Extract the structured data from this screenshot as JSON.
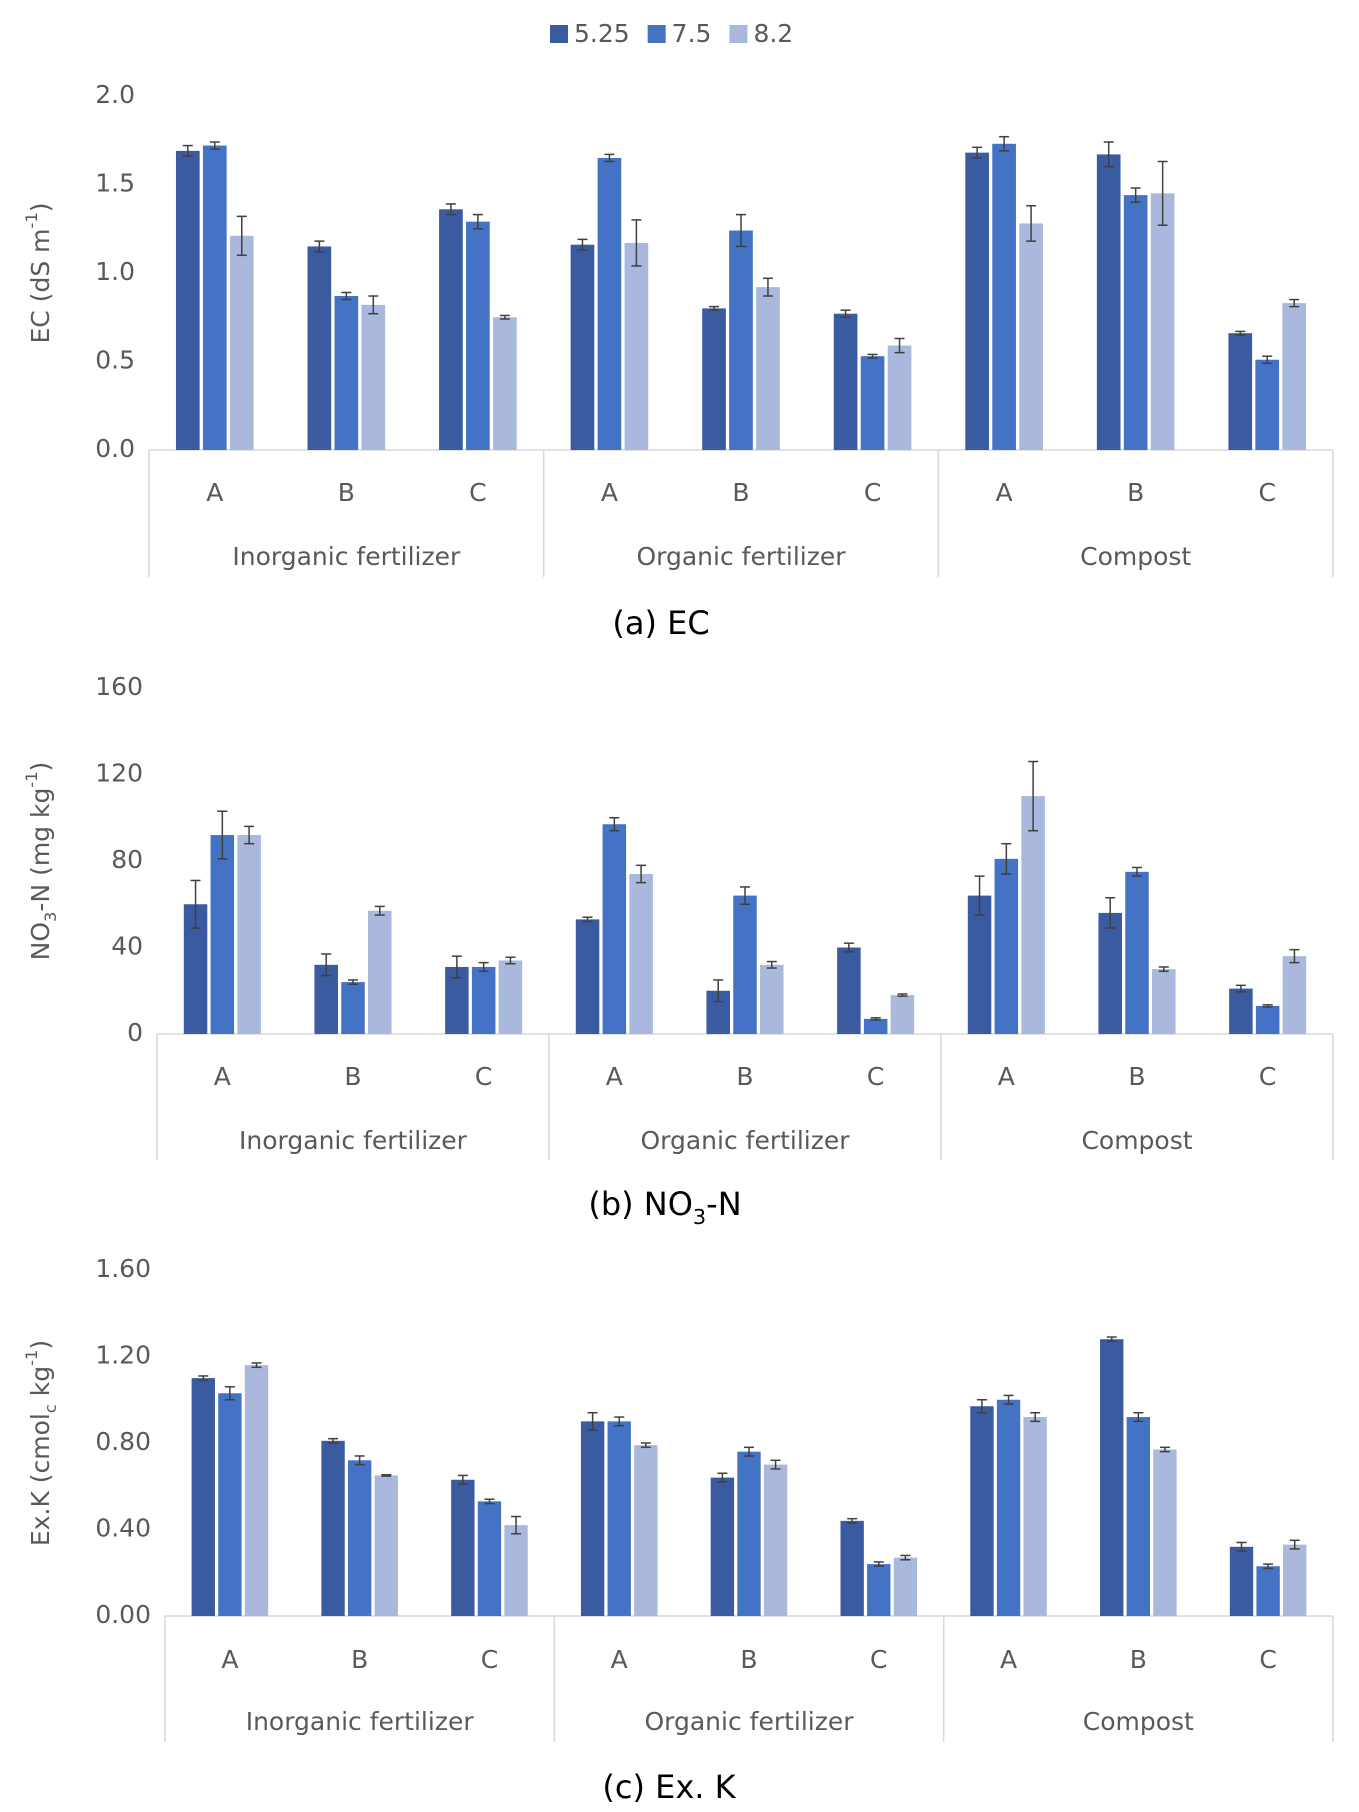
{
  "chart_data": {
    "charts": [
      {
        "type": "bar",
        "caption": [
          {
            "text": "(a) EC"
          }
        ],
        "y_label": [
          {
            "text": "EC (dS m"
          },
          {
            "text": "-1",
            "shift": "sup"
          },
          {
            "text": ")"
          }
        ],
        "categories": [
          "A",
          "B",
          "C",
          "A",
          "B",
          "C",
          "A",
          "B",
          "C"
        ],
        "groups": [
          "Inorganic fertilizer",
          "Organic fertilizer",
          "Compost"
        ],
        "ylim": [
          0,
          2
        ],
        "yticks": [
          {
            "value": 0,
            "label": "0.0"
          },
          0.5,
          {
            "value": 1,
            "label": "1.0"
          },
          1.5,
          {
            "value": 2,
            "label": "2.0"
          }
        ],
        "grid": false,
        "legend": "top",
        "series": [
          {
            "name": "5.25",
            "color": "#3a5ba0",
            "values": [
              1.69,
              1.15,
              1.36,
              1.16,
              0.8,
              0.77,
              1.68,
              1.67,
              0.66
            ],
            "errors": [
              0.03,
              0.03,
              0.03,
              0.03,
              0.01,
              0.02,
              0.03,
              0.07,
              0.01
            ]
          },
          {
            "name": "7.5",
            "color": "#4472c4",
            "values": [
              1.72,
              0.87,
              1.29,
              1.65,
              1.24,
              0.53,
              1.73,
              1.44,
              0.51
            ],
            "errors": [
              0.02,
              0.02,
              0.04,
              0.02,
              0.09,
              0.01,
              0.04,
              0.04,
              0.02
            ]
          },
          {
            "name": "8.2",
            "color": "#a9b8dc",
            "values": [
              1.21,
              0.82,
              0.75,
              1.17,
              0.92,
              0.59,
              1.28,
              1.45,
              0.83
            ],
            "errors": [
              0.11,
              0.05,
              0.01,
              0.13,
              0.05,
              0.04,
              0.1,
              0.18,
              0.02
            ]
          }
        ]
      },
      {
        "type": "bar",
        "caption": [
          {
            "text": "(b) NO"
          },
          {
            "text": "3",
            "shift": "sub"
          },
          {
            "text": "-N"
          }
        ],
        "y_label": [
          {
            "text": "NO"
          },
          {
            "text": "3",
            "shift": "sub"
          },
          {
            "text": "-N (mg kg"
          },
          {
            "text": "-1",
            "shift": "sup"
          },
          {
            "text": ")"
          }
        ],
        "categories": [
          "A",
          "B",
          "C",
          "A",
          "B",
          "C",
          "A",
          "B",
          "C"
        ],
        "groups": [
          "Inorganic fertilizer",
          "Organic fertilizer",
          "Compost"
        ],
        "ylim": [
          0,
          160
        ],
        "yticks": [
          0,
          40,
          80,
          120,
          160
        ],
        "grid": false,
        "series": [
          {
            "name": "5.25",
            "color": "#3a5ba0",
            "values": [
              60,
              32,
              31,
              53,
              20,
              40,
              64,
              56,
              21
            ],
            "errors": [
              11,
              5,
              5,
              1,
              5,
              2,
              9,
              7,
              1.5
            ]
          },
          {
            "name": "7.5",
            "color": "#4472c4",
            "values": [
              92,
              24,
              31,
              97,
              64,
              7,
              81,
              75,
              13
            ],
            "errors": [
              11,
              1,
              2,
              3,
              4,
              0.5,
              7,
              2,
              0.5
            ]
          },
          {
            "name": "8.2",
            "color": "#a9b8dc",
            "values": [
              92,
              57,
              34,
              74,
              32,
              18,
              110,
              30,
              36
            ],
            "errors": [
              4,
              2,
              1.5,
              4,
              1.5,
              0.5,
              16,
              1,
              3
            ]
          }
        ]
      },
      {
        "type": "bar",
        "caption": [
          {
            "text": "(c) Ex. K"
          }
        ],
        "y_label": [
          {
            "text": "Ex.K (cmol"
          },
          {
            "text": "c",
            "shift": "sub"
          },
          {
            "text": " kg"
          },
          {
            "text": "-1",
            "shift": "sup"
          },
          {
            "text": ")"
          }
        ],
        "categories": [
          "A",
          "B",
          "C",
          "A",
          "B",
          "C",
          "A",
          "B",
          "C"
        ],
        "groups": [
          "Inorganic fertilizer",
          "Organic fertilizer",
          "Compost"
        ],
        "ylim": [
          0,
          1.6
        ],
        "yticks": [
          {
            "value": 0,
            "label": "0.00"
          },
          {
            "value": 0.4,
            "label": "0.40"
          },
          {
            "value": 0.8,
            "label": "0.80"
          },
          {
            "value": 1.2,
            "label": "1.20"
          },
          {
            "value": 1.6,
            "label": "1.60"
          }
        ],
        "grid": false,
        "series": [
          {
            "name": "5.25",
            "color": "#3a5ba0",
            "values": [
              1.1,
              0.81,
              0.63,
              0.9,
              0.64,
              0.44,
              0.97,
              1.28,
              0.32
            ],
            "errors": [
              0.01,
              0.01,
              0.02,
              0.04,
              0.02,
              0.01,
              0.03,
              0.01,
              0.02
            ]
          },
          {
            "name": "7.5",
            "color": "#4472c4",
            "values": [
              1.03,
              0.72,
              0.53,
              0.9,
              0.76,
              0.24,
              1.0,
              0.92,
              0.23
            ],
            "errors": [
              0.03,
              0.02,
              0.01,
              0.02,
              0.02,
              0.01,
              0.02,
              0.02,
              0.01
            ]
          },
          {
            "name": "8.2",
            "color": "#a9b8dc",
            "values": [
              1.16,
              0.65,
              0.42,
              0.79,
              0.7,
              0.27,
              0.92,
              0.77,
              0.33
            ],
            "errors": [
              0.01,
              0.003,
              0.04,
              0.01,
              0.02,
              0.01,
              0.02,
              0.01,
              0.02
            ]
          }
        ]
      }
    ]
  }
}
